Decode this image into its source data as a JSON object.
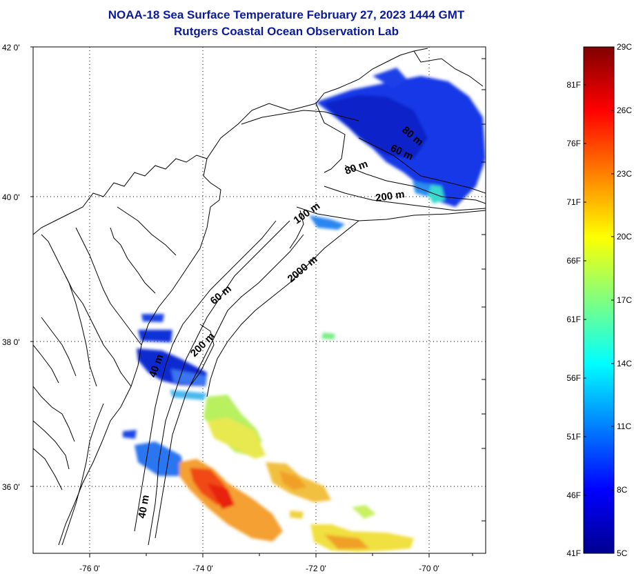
{
  "header": {
    "title": "NOAA-18 Sea Surface Temperature February 27, 2023 1444 GMT",
    "subtitle": "Rutgers Coastal Ocean Observation Lab"
  },
  "map": {
    "lat_ticks": [
      "42 0'",
      "40 0'",
      "38 0'",
      "36 0'"
    ],
    "lon_ticks": [
      "-76 0'",
      "-74 0'",
      "-72 0'",
      "-70 0'"
    ],
    "isobath_labels": [
      "80 m",
      "60 m",
      "80 m",
      "200 m",
      "100 m",
      "2000 m",
      "60 m",
      "200 m",
      "40 m",
      "40 m"
    ]
  },
  "colorbar": {
    "celsius": [
      "29C",
      "26C",
      "23C",
      "20C",
      "17C",
      "14C",
      "11C",
      "8C",
      "5C"
    ],
    "fahrenheit": [
      "81F",
      "76F",
      "71F",
      "66F",
      "61F",
      "56F",
      "51F",
      "46F",
      "41F"
    ]
  }
}
